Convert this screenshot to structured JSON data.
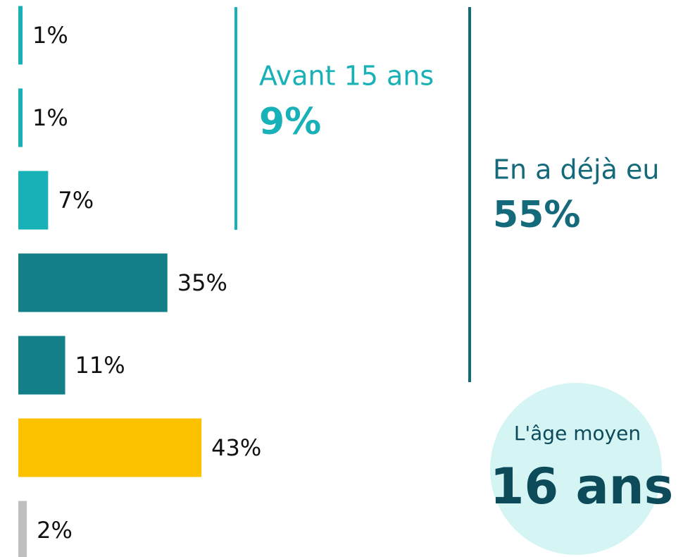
{
  "chart_data": {
    "type": "hbar",
    "categories": [
      null,
      null,
      null,
      null,
      null,
      null,
      null
    ],
    "values": [
      1,
      1,
      7,
      35,
      11,
      43,
      2
    ],
    "value_labels": [
      "1%",
      "1%",
      "7%",
      "35%",
      "11%",
      "43%",
      "2%"
    ],
    "colors": [
      "#17b1b7",
      "#17b1b7",
      "#17b1b7",
      "#138089",
      "#138089",
      "#fcc200",
      "#bfbfbf"
    ],
    "annotations": [
      {
        "text": "Avant 15 ans",
        "value": "9%",
        "color": "#17b1b7"
      },
      {
        "text": "En a déjà eu",
        "value": "55%",
        "color": "#146a7a"
      },
      {
        "text": "L'âge moyen",
        "value": "16 ans",
        "color": "#0d4a5a"
      }
    ]
  }
}
